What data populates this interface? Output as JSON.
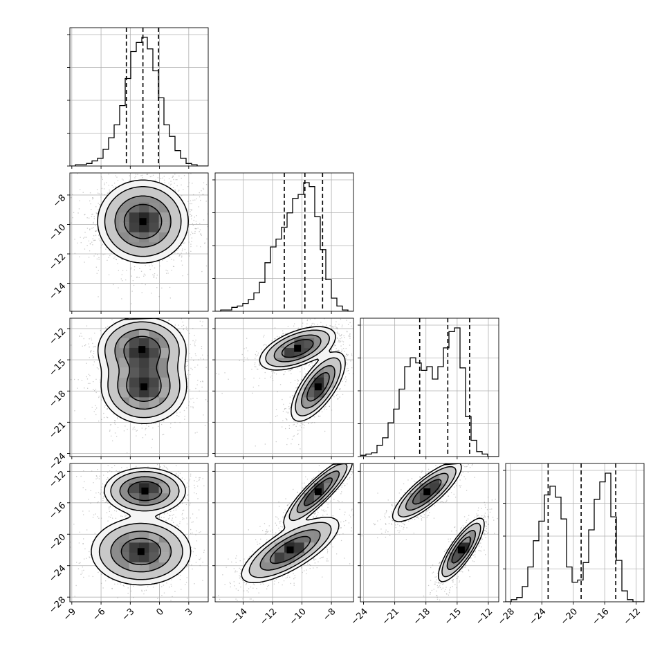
{
  "chart_data": {
    "type": "corner",
    "variables": [
      {
        "range": [
          -9.2,
          5.0
        ],
        "ticks": [
          -9,
          -6,
          -3,
          0,
          3
        ],
        "tick_labels": [
          "−9",
          "−6",
          "−3",
          "0",
          "3"
        ],
        "quantiles": [
          -3.4,
          -1.7,
          -0.1
        ],
        "hist_counts": [
          0,
          1,
          1,
          2,
          4,
          6,
          13,
          22,
          32,
          47,
          68,
          89,
          96,
          100,
          91,
          74,
          53,
          32,
          23,
          12,
          6,
          2,
          1,
          0,
          0
        ]
      },
      {
        "range": [
          -15.9,
          -6.5
        ],
        "ticks": [
          -14,
          -12,
          -10,
          -8
        ],
        "tick_labels": [
          "−14",
          "−12",
          "−10",
          "−8"
        ],
        "quantiles": [
          -11.2,
          -9.8,
          -8.6
        ],
        "hist_counts": [
          0,
          1,
          1,
          3,
          4,
          6,
          9,
          14,
          22,
          37,
          49,
          55,
          64,
          75,
          86,
          89,
          98,
          95,
          72,
          47,
          24,
          10,
          4,
          1,
          0
        ]
      },
      {
        "range": [
          -24.3,
          -11.0
        ],
        "ticks": [
          -24,
          -21,
          -18,
          -15,
          -12
        ],
        "tick_labels": [
          "−24",
          "−21",
          "−18",
          "−15",
          "−12"
        ],
        "quantiles": [
          -18.6,
          -15.9,
          -13.8
        ],
        "hist_counts": [
          1,
          2,
          3,
          9,
          15,
          27,
          38,
          54,
          72,
          79,
          75,
          69,
          72,
          62,
          72,
          87,
          100,
          103,
          71,
          32,
          13,
          4,
          2,
          0,
          0
        ]
      },
      {
        "range": [
          -28.6,
          -11.0
        ],
        "ticks": [
          -28,
          -24,
          -20,
          -16,
          -12
        ],
        "tick_labels": [
          "−28",
          "−24",
          "−20",
          "−16",
          "−12"
        ],
        "quantiles": [
          -23.2,
          -19.0,
          -14.6
        ],
        "hist_counts": [
          0,
          1,
          2,
          7,
          16,
          28,
          37,
          49,
          53,
          48,
          38,
          16,
          9,
          10,
          18,
          33,
          47,
          55,
          59,
          39,
          19,
          5,
          1,
          0,
          0
        ]
      }
    ],
    "hist_y_ticks": [
      0.0,
      0.25,
      0.5,
      0.75,
      1.0
    ],
    "modes": {
      "1-0": [
        {
          "cx": -1.7,
          "cy": -9.8,
          "sx": 1.9,
          "sy": 1.15,
          "rho": 0.0,
          "w": 1.0
        }
      ],
      "2-0": [
        {
          "cx": -1.8,
          "cy": -14.0,
          "sx": 1.85,
          "sy": 1.3,
          "rho": 0.0,
          "w": 1.0
        },
        {
          "cx": -1.6,
          "cy": -17.6,
          "sx": 1.8,
          "sy": 1.45,
          "rho": 0.0,
          "w": 1.0
        }
      ],
      "2-1": [
        {
          "cx": -10.3,
          "cy": -13.9,
          "sx": 1.05,
          "sy": 0.85,
          "rho": 0.55,
          "w": 1.0
        },
        {
          "cx": -8.9,
          "cy": -17.6,
          "sx": 0.75,
          "sy": 1.35,
          "rho": 0.7,
          "w": 1.0
        }
      ],
      "3-0": [
        {
          "cx": -1.5,
          "cy": -14.5,
          "sx": 1.7,
          "sy": 1.2,
          "rho": 0.0,
          "w": 1.0
        },
        {
          "cx": -1.9,
          "cy": -22.2,
          "sx": 2.1,
          "sy": 1.75,
          "rho": 0.0,
          "w": 0.95
        }
      ],
      "3-1": [
        {
          "cx": -8.9,
          "cy": -14.6,
          "sx": 0.95,
          "sy": 1.75,
          "rho": 0.88,
          "w": 1.0
        },
        {
          "cx": -10.8,
          "cy": -22.0,
          "sx": 1.35,
          "sy": 1.7,
          "rho": 0.75,
          "w": 1.0
        }
      ],
      "3-2": [
        {
          "cx": -17.9,
          "cy": -14.6,
          "sx": 1.35,
          "sy": 1.55,
          "rho": 0.82,
          "w": 1.0
        },
        {
          "cx": -14.6,
          "cy": -22.0,
          "sx": 0.9,
          "sy": 1.65,
          "rho": 0.82,
          "w": 1.0
        }
      ]
    },
    "contour_levels": [
      0.6,
      0.32,
      0.12,
      0.05
    ],
    "grid": true
  }
}
